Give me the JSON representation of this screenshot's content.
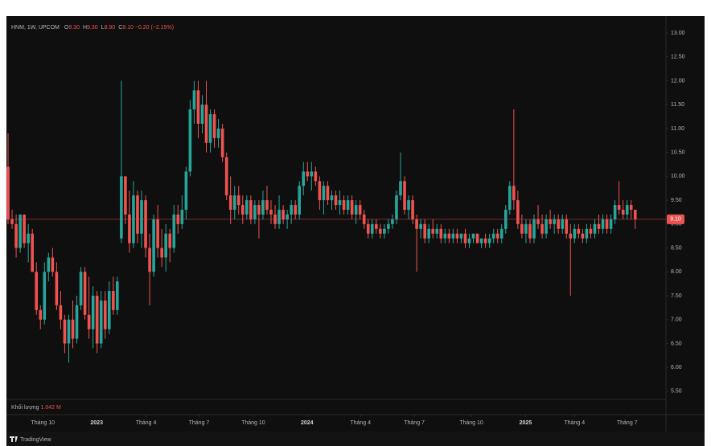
{
  "chart_data": {
    "type": "candlestick",
    "symbol": "HNM, 1W, UPCOM",
    "legend": [
      {
        "key": "O",
        "value": "9.30"
      },
      {
        "key": "H",
        "value": "9.30"
      },
      {
        "key": "L",
        "value": "8.90"
      },
      {
        "key": "C",
        "value": "9.10"
      }
    ],
    "change": "−0.20 (−2.15%)",
    "up_color": "#26a69a",
    "down_color": "#ef5350",
    "ohlc": [
      [
        10.2,
        10.9,
        9.0,
        9.1
      ],
      [
        9.1,
        9.3,
        8.9,
        9.0
      ],
      [
        9.0,
        9.2,
        8.3,
        8.5
      ],
      [
        8.5,
        9.2,
        8.4,
        9.2
      ],
      [
        9.2,
        9.2,
        8.5,
        8.6
      ],
      [
        8.6,
        9.0,
        8.2,
        8.8
      ],
      [
        8.8,
        8.9,
        8.0,
        8.0
      ],
      [
        8.0,
        8.2,
        7.1,
        7.2
      ],
      [
        7.2,
        7.3,
        6.8,
        7.0
      ],
      [
        7.0,
        8.2,
        6.9,
        8.0
      ],
      [
        8.0,
        8.4,
        7.8,
        8.3
      ],
      [
        8.3,
        8.5,
        7.9,
        8.0
      ],
      [
        8.0,
        8.2,
        7.2,
        7.3
      ],
      [
        7.3,
        7.6,
        6.8,
        7.0
      ],
      [
        7.0,
        7.1,
        6.3,
        6.5
      ],
      [
        6.5,
        7.1,
        6.1,
        7.0
      ],
      [
        7.0,
        7.4,
        6.4,
        6.6
      ],
      [
        6.6,
        7.5,
        6.5,
        7.3
      ],
      [
        7.3,
        8.1,
        7.2,
        8.0
      ],
      [
        8.0,
        8.1,
        7.0,
        7.1
      ],
      [
        7.1,
        7.9,
        6.6,
        6.8
      ],
      [
        6.8,
        7.7,
        6.4,
        7.5
      ],
      [
        7.5,
        7.6,
        6.3,
        6.5
      ],
      [
        6.5,
        7.6,
        6.4,
        7.4
      ],
      [
        7.4,
        7.6,
        6.6,
        6.8
      ],
      [
        6.8,
        7.8,
        6.7,
        7.6
      ],
      [
        7.6,
        7.9,
        7.1,
        7.2
      ],
      [
        7.2,
        7.9,
        7.1,
        7.8
      ],
      [
        8.7,
        12.0,
        8.6,
        10.0
      ],
      [
        10.0,
        10.0,
        9.0,
        9.2
      ],
      [
        9.2,
        9.7,
        8.4,
        8.6
      ],
      [
        8.6,
        9.9,
        8.5,
        9.6
      ],
      [
        9.6,
        9.7,
        8.6,
        8.8
      ],
      [
        8.8,
        9.7,
        8.5,
        9.5
      ],
      [
        9.5,
        9.6,
        8.3,
        8.5
      ],
      [
        8.5,
        8.8,
        7.3,
        8.0
      ],
      [
        8.0,
        9.2,
        7.9,
        9.1
      ],
      [
        9.1,
        9.4,
        8.3,
        8.5
      ],
      [
        8.5,
        8.9,
        8.1,
        8.3
      ],
      [
        8.3,
        9.0,
        8.0,
        8.8
      ],
      [
        8.8,
        8.9,
        8.2,
        8.5
      ],
      [
        8.5,
        9.4,
        8.4,
        9.2
      ],
      [
        9.2,
        9.4,
        8.8,
        9.0
      ],
      [
        9.0,
        9.6,
        8.9,
        9.3
      ],
      [
        9.3,
        10.2,
        9.1,
        10.1
      ],
      [
        10.1,
        11.6,
        10.0,
        11.4
      ],
      [
        11.4,
        12.0,
        11.1,
        11.8
      ],
      [
        11.8,
        12.0,
        10.8,
        11.1
      ],
      [
        11.1,
        11.7,
        10.9,
        11.5
      ],
      [
        11.5,
        12.0,
        10.5,
        10.7
      ],
      [
        10.7,
        11.4,
        10.5,
        11.3
      ],
      [
        11.3,
        11.4,
        10.6,
        10.8
      ],
      [
        10.8,
        11.2,
        10.6,
        11.0
      ],
      [
        11.0,
        11.1,
        10.3,
        10.4
      ],
      [
        10.4,
        10.5,
        9.5,
        9.6
      ],
      [
        9.6,
        10.0,
        9.0,
        9.3
      ],
      [
        9.3,
        9.8,
        9.1,
        9.6
      ],
      [
        9.6,
        9.8,
        9.2,
        9.4
      ],
      [
        9.4,
        9.6,
        9.0,
        9.2
      ],
      [
        9.2,
        9.6,
        9.1,
        9.5
      ],
      [
        9.5,
        9.6,
        9.0,
        9.1
      ],
      [
        9.1,
        9.5,
        9.0,
        9.4
      ],
      [
        9.4,
        9.5,
        8.7,
        9.2
      ],
      [
        9.2,
        9.7,
        9.1,
        9.5
      ],
      [
        9.5,
        9.8,
        9.2,
        9.3
      ],
      [
        9.3,
        9.5,
        9.0,
        9.2
      ],
      [
        9.2,
        9.4,
        8.9,
        9.0
      ],
      [
        9.0,
        9.6,
        8.9,
        9.3
      ],
      [
        9.3,
        9.4,
        9.0,
        9.1
      ],
      [
        9.1,
        9.3,
        8.9,
        9.2
      ],
      [
        9.2,
        9.5,
        9.0,
        9.4
      ],
      [
        9.4,
        9.5,
        9.1,
        9.2
      ],
      [
        9.2,
        9.9,
        9.1,
        9.8
      ],
      [
        9.8,
        10.3,
        9.6,
        10.1
      ],
      [
        10.1,
        10.3,
        9.9,
        10.0
      ],
      [
        10.0,
        10.3,
        9.7,
        10.1
      ],
      [
        10.1,
        10.2,
        9.8,
        9.9
      ],
      [
        9.9,
        10.0,
        9.3,
        9.5
      ],
      [
        9.5,
        9.9,
        9.2,
        9.8
      ],
      [
        9.8,
        9.9,
        9.4,
        9.5
      ],
      [
        9.5,
        9.7,
        9.3,
        9.6
      ],
      [
        9.6,
        9.7,
        9.3,
        9.4
      ],
      [
        9.4,
        9.7,
        9.2,
        9.5
      ],
      [
        9.5,
        9.6,
        9.2,
        9.3
      ],
      [
        9.3,
        9.6,
        9.2,
        9.5
      ],
      [
        9.5,
        9.6,
        9.1,
        9.2
      ],
      [
        9.2,
        9.5,
        9.0,
        9.4
      ],
      [
        9.4,
        9.5,
        9.1,
        9.2
      ],
      [
        9.2,
        9.3,
        8.9,
        9.0
      ],
      [
        9.0,
        9.1,
        8.7,
        8.8
      ],
      [
        8.8,
        9.1,
        8.7,
        9.0
      ],
      [
        9.0,
        9.1,
        8.8,
        8.9
      ],
      [
        8.9,
        9.0,
        8.7,
        8.8
      ],
      [
        8.8,
        9.0,
        8.7,
        8.9
      ],
      [
        8.9,
        9.1,
        8.8,
        9.0
      ],
      [
        9.0,
        9.2,
        8.9,
        9.1
      ],
      [
        9.1,
        9.7,
        9.0,
        9.6
      ],
      [
        9.6,
        10.5,
        9.5,
        9.9
      ],
      [
        9.9,
        10.0,
        9.2,
        9.3
      ],
      [
        9.3,
        9.6,
        9.1,
        9.5
      ],
      [
        9.5,
        9.6,
        9.0,
        9.1
      ],
      [
        9.1,
        9.2,
        8.0,
        8.9
      ],
      [
        8.9,
        9.1,
        8.7,
        9.0
      ],
      [
        9.0,
        9.1,
        8.6,
        8.7
      ],
      [
        8.7,
        9.0,
        8.6,
        8.9
      ],
      [
        8.9,
        9.1,
        8.7,
        8.8
      ],
      [
        8.8,
        9.0,
        8.7,
        8.9
      ],
      [
        8.9,
        9.0,
        8.6,
        8.7
      ],
      [
        8.7,
        8.9,
        8.6,
        8.8
      ],
      [
        8.8,
        8.9,
        8.6,
        8.7
      ],
      [
        8.7,
        8.9,
        8.6,
        8.8
      ],
      [
        8.8,
        8.9,
        8.6,
        8.7
      ],
      [
        8.7,
        8.8,
        8.6,
        8.8
      ],
      [
        8.8,
        8.9,
        8.5,
        8.6
      ],
      [
        8.6,
        8.8,
        8.5,
        8.7
      ],
      [
        8.7,
        8.8,
        8.6,
        8.8
      ],
      [
        8.8,
        8.8,
        8.6,
        8.6
      ],
      [
        8.6,
        8.7,
        8.5,
        8.7
      ],
      [
        8.7,
        8.8,
        8.5,
        8.6
      ],
      [
        8.6,
        8.8,
        8.5,
        8.7
      ],
      [
        8.7,
        8.9,
        8.6,
        8.8
      ],
      [
        8.8,
        8.9,
        8.6,
        8.7
      ],
      [
        8.7,
        9.0,
        8.6,
        8.9
      ],
      [
        8.9,
        9.4,
        8.8,
        9.3
      ],
      [
        9.3,
        9.9,
        9.2,
        9.8
      ],
      [
        9.8,
        11.4,
        9.3,
        9.5
      ],
      [
        9.5,
        9.7,
        8.9,
        9.0
      ],
      [
        9.0,
        9.2,
        8.7,
        8.8
      ],
      [
        8.8,
        9.1,
        8.6,
        9.0
      ],
      [
        9.0,
        9.1,
        8.6,
        8.7
      ],
      [
        8.7,
        9.2,
        8.6,
        9.1
      ],
      [
        9.1,
        9.4,
        8.9,
        9.0
      ],
      [
        9.0,
        9.2,
        8.7,
        8.8
      ],
      [
        8.8,
        9.2,
        8.7,
        9.1
      ],
      [
        9.1,
        9.3,
        8.9,
        9.0
      ],
      [
        9.0,
        9.2,
        8.8,
        9.1
      ],
      [
        9.1,
        9.2,
        8.8,
        8.9
      ],
      [
        8.9,
        9.2,
        8.8,
        9.1
      ],
      [
        9.1,
        9.2,
        8.7,
        8.8
      ],
      [
        8.8,
        9.0,
        7.5,
        8.7
      ],
      [
        8.7,
        9.0,
        8.6,
        8.9
      ],
      [
        8.9,
        9.0,
        8.7,
        8.8
      ],
      [
        8.8,
        8.9,
        8.6,
        8.7
      ],
      [
        8.7,
        9.0,
        8.6,
        8.9
      ],
      [
        8.9,
        9.0,
        8.7,
        8.8
      ],
      [
        8.8,
        9.1,
        8.7,
        9.0
      ],
      [
        9.0,
        9.2,
        8.8,
        8.9
      ],
      [
        8.9,
        9.2,
        8.8,
        9.1
      ],
      [
        9.1,
        9.2,
        8.8,
        8.9
      ],
      [
        8.9,
        9.2,
        8.8,
        9.1
      ],
      [
        9.1,
        9.5,
        9.0,
        9.4
      ],
      [
        9.4,
        9.9,
        9.2,
        9.3
      ],
      [
        9.3,
        9.5,
        9.1,
        9.2
      ],
      [
        9.2,
        9.5,
        9.1,
        9.4
      ],
      [
        9.4,
        9.5,
        9.1,
        9.3
      ],
      [
        9.3,
        9.3,
        8.9,
        9.1
      ]
    ],
    "last_price": {
      "value": 9.1,
      "label": "9.10"
    },
    "ylim": [
      5.33,
      13.22
    ],
    "yticks": [
      {
        "value": 5.5,
        "label": "5.50"
      },
      {
        "value": 6,
        "label": "6.00"
      },
      {
        "value": 6.5,
        "label": "6.50"
      },
      {
        "value": 7,
        "label": "7.00"
      },
      {
        "value": 7.5,
        "label": "7.50"
      },
      {
        "value": 8,
        "label": "8.00"
      },
      {
        "value": 8.5,
        "label": "8.50"
      },
      {
        "value": 9,
        "label": "9.00"
      },
      {
        "value": 9.5,
        "label": "9.50"
      },
      {
        "value": 10,
        "label": "10.00"
      },
      {
        "value": 10.5,
        "label": "10.50"
      },
      {
        "value": 11,
        "label": "11.00"
      },
      {
        "value": 11.5,
        "label": "11.50"
      },
      {
        "value": 12,
        "label": "12.00"
      },
      {
        "value": 12.5,
        "label": "12.50"
      },
      {
        "value": 13,
        "label": "13.00"
      }
    ],
    "xlim": [
      -0.4,
      162.6
    ],
    "xticks": [
      {
        "value": 8.6,
        "label": "Tháng 10"
      },
      {
        "value": 21.9,
        "label": "2023"
      },
      {
        "value": 34.1,
        "label": "Tháng 4"
      },
      {
        "value": 47.2,
        "label": "Tháng 7"
      },
      {
        "value": 60.6,
        "label": "Tháng 10"
      },
      {
        "value": 73.9,
        "label": "2024"
      },
      {
        "value": 87.1,
        "label": "Tháng 4"
      },
      {
        "value": 100.4,
        "label": "Tháng 7"
      },
      {
        "value": 114.5,
        "label": "Tháng 10"
      },
      {
        "value": 127.9,
        "label": "2025"
      },
      {
        "value": 140.0,
        "label": "Tháng 4"
      },
      {
        "value": 153.0,
        "label": "Tháng 7"
      }
    ],
    "volume_label": "Khối lượng",
    "volume_value": "1.042 M",
    "brand": "TradingView"
  }
}
